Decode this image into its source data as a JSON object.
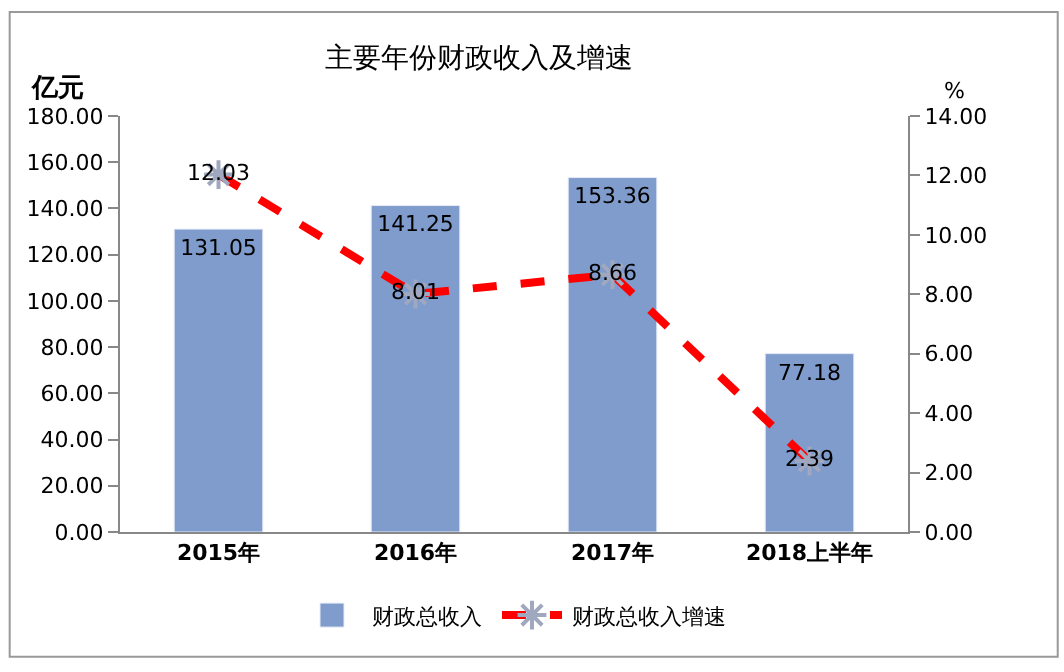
{
  "chart_data": {
    "type": "bar",
    "title": "主要年份财政收入及增速",
    "ylabel": "亿元",
    "y2label": "%",
    "categories": [
      "2015年",
      "2016年",
      "2017年",
      "2018上半年"
    ],
    "series": [
      {
        "name": "财政总收入",
        "color": "#7f9ccc",
        "values": [
          131.05,
          141.25,
          153.36,
          77.18
        ]
      },
      {
        "name": "财政总收入增速",
        "type": "line",
        "axis": "y2",
        "color": "#ff0000",
        "line_style": "dashed",
        "marker": "cross",
        "values": [
          12.03,
          8.01,
          8.66,
          2.39
        ]
      }
    ],
    "ylim": [
      0,
      180
    ],
    "yticks": [
      {
        "value": 0,
        "label": "0.00"
      },
      {
        "value": 20,
        "label": "20.00"
      },
      {
        "value": 40,
        "label": "40.00"
      },
      {
        "value": 60,
        "label": "60.00"
      },
      {
        "value": 80,
        "label": "80.00"
      },
      {
        "value": 100,
        "label": "100.00"
      },
      {
        "value": 120,
        "label": "120.00"
      },
      {
        "value": 140,
        "label": "140.00"
      },
      {
        "value": 160,
        "label": "160.00"
      },
      {
        "value": 180,
        "label": "180.00"
      }
    ],
    "y2lim": [
      0,
      14
    ],
    "y2ticks": [
      {
        "value": 0,
        "label": "0.00"
      },
      {
        "value": 2,
        "label": "2.00"
      },
      {
        "value": 4,
        "label": "4.00"
      },
      {
        "value": 6,
        "label": "6.00"
      },
      {
        "value": 8,
        "label": "8.00"
      },
      {
        "value": 10,
        "label": "10.00"
      },
      {
        "value": 12,
        "label": "12.00"
      },
      {
        "value": 14,
        "label": "14.00"
      }
    ],
    "data_labels": true,
    "legend": "bottom"
  }
}
